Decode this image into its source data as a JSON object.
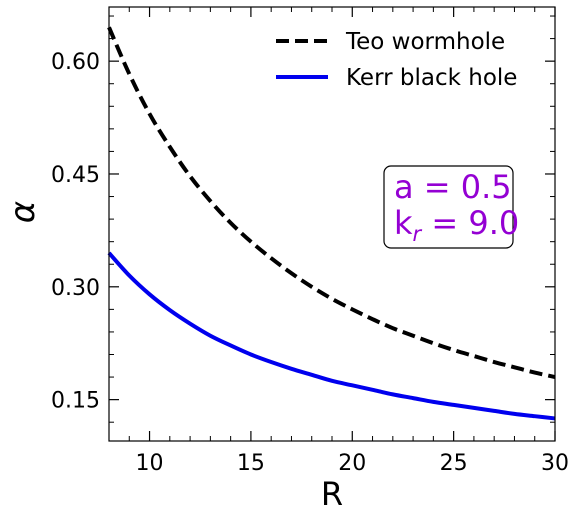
{
  "chart_data": {
    "type": "line",
    "xlabel": "R",
    "ylabel": "α",
    "xlim": [
      8,
      30
    ],
    "ylim": [
      0.095,
      0.672
    ],
    "xticks": [
      10,
      15,
      20,
      25,
      30
    ],
    "xtick_labels": [
      "10",
      "15",
      "20",
      "25",
      "30"
    ],
    "yticks": [
      0.15,
      0.3,
      0.45,
      0.6
    ],
    "ytick_labels": [
      "0.15",
      "0.30",
      "0.45",
      "0.60"
    ],
    "legend_position": "top-right",
    "grid": false,
    "x": [
      8,
      9,
      10,
      11,
      12,
      13,
      14,
      15,
      16,
      17,
      18,
      19,
      20,
      21,
      22,
      23,
      24,
      25,
      26,
      27,
      28,
      29,
      30
    ],
    "series": [
      {
        "name": "Teo wormhole",
        "style": "dashed",
        "color": "#000000",
        "values": [
          0.645,
          0.583,
          0.53,
          0.486,
          0.447,
          0.414,
          0.385,
          0.36,
          0.338,
          0.318,
          0.3,
          0.284,
          0.27,
          0.257,
          0.245,
          0.235,
          0.225,
          0.216,
          0.208,
          0.2,
          0.193,
          0.186,
          0.18
        ]
      },
      {
        "name": "Kerr black hole",
        "style": "solid",
        "color": "#0000ee",
        "values": [
          0.345,
          0.315,
          0.29,
          0.269,
          0.251,
          0.235,
          0.222,
          0.21,
          0.2,
          0.191,
          0.183,
          0.175,
          0.169,
          0.163,
          0.157,
          0.152,
          0.147,
          0.143,
          0.139,
          0.135,
          0.131,
          0.128,
          0.125
        ]
      }
    ],
    "annotation": {
      "line1": "a = 0.5",
      "line2_prefix": "k",
      "line2_subscript": "r",
      "line2_suffix": " = 9.0",
      "color": "#9400d3"
    }
  }
}
